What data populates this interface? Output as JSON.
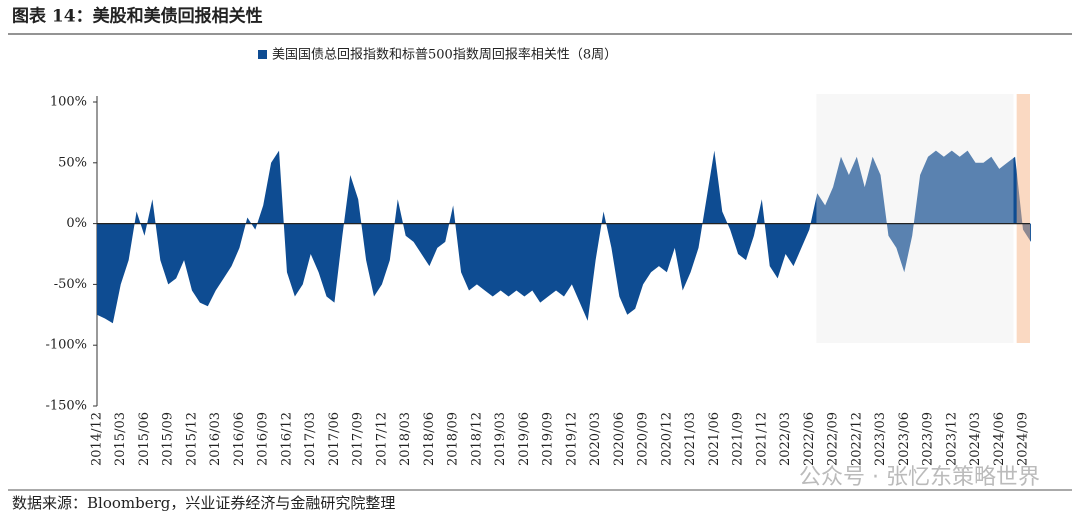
{
  "chart_data": {
    "type": "area",
    "title": "图表 14：美股和美债回报相关性",
    "source": "数据来源：Bloomberg，兴业证券经济与金融研究院整理",
    "watermark": "公众号 · 张忆东策略世界",
    "legend": "top",
    "categories": [
      "2014/12",
      null,
      null,
      "2015/03",
      null,
      null,
      "2015/06",
      null,
      null,
      "2015/09",
      null,
      null,
      "2015/12",
      null,
      null,
      "2016/03",
      null,
      null,
      "2016/06",
      null,
      null,
      "2016/09",
      null,
      null,
      "2016/12",
      null,
      null,
      "2017/03",
      null,
      null,
      "2017/06",
      null,
      null,
      "2017/09",
      null,
      null,
      "2017/12",
      null,
      null,
      "2018/03",
      null,
      null,
      "2018/06",
      null,
      null,
      "2018/09",
      null,
      null,
      "2018/12",
      null,
      null,
      "2019/03",
      null,
      null,
      "2019/06",
      null,
      null,
      "2019/09",
      null,
      null,
      "2019/12",
      null,
      null,
      "2020/03",
      null,
      null,
      "2020/06",
      null,
      null,
      "2020/09",
      null,
      null,
      "2020/12",
      null,
      null,
      "2021/03",
      null,
      null,
      "2021/06",
      null,
      null,
      "2021/09",
      null,
      null,
      "2021/12",
      null,
      null,
      "2022/03",
      null,
      null,
      "2022/06",
      null,
      null,
      "2022/09",
      null,
      null,
      "2022/12",
      null,
      null,
      "2023/03",
      null,
      null,
      "2023/06",
      null,
      null,
      "2023/09",
      null,
      null,
      "2023/12",
      null,
      null,
      "2024/03",
      null,
      null,
      "2024/06",
      null,
      null,
      "2024/09",
      null
    ],
    "series": [
      {
        "name": "美国国债总回报指数和标普500指数周回报率相关性（8周）",
        "color": "#0e4c92",
        "values": [
          -75,
          -78,
          -82,
          -50,
          -30,
          10,
          -10,
          20,
          -30,
          -50,
          -45,
          -30,
          -55,
          -65,
          -68,
          -55,
          -45,
          -35,
          -20,
          5,
          -5,
          15,
          50,
          60,
          -40,
          -60,
          -50,
          -25,
          -40,
          -60,
          -65,
          -10,
          40,
          20,
          -30,
          -60,
          -50,
          -30,
          20,
          -10,
          -15,
          -25,
          -35,
          -20,
          -15,
          15,
          -40,
          -55,
          -50,
          -55,
          -60,
          -55,
          -60,
          -55,
          -60,
          -55,
          -65,
          -60,
          -55,
          -60,
          -50,
          -65,
          -80,
          -30,
          10,
          -20,
          -60,
          -75,
          -70,
          -50,
          -40,
          -35,
          -40,
          -20,
          -55,
          -40,
          -20,
          20,
          60,
          10,
          -5,
          -25,
          -30,
          -10,
          20,
          -35,
          -45,
          -25,
          -35,
          -20,
          -5,
          25,
          15,
          30,
          55,
          40,
          55,
          30,
          55,
          40,
          -10,
          -20,
          -40,
          -10,
          40,
          55,
          60,
          55,
          60,
          55,
          60,
          50,
          50,
          55,
          45,
          50,
          55,
          -5,
          -15
        ]
      }
    ],
    "ylim": [
      -150,
      100
    ],
    "yticks": [
      {
        "value": -150,
        "label": "-150%"
      },
      {
        "value": -100,
        "label": "-100%"
      },
      {
        "value": -50,
        "label": "-50%"
      },
      {
        "value": 0,
        "label": "0%"
      },
      {
        "value": 50,
        "label": "50%"
      },
      {
        "value": 100,
        "label": "100%"
      }
    ]
  }
}
